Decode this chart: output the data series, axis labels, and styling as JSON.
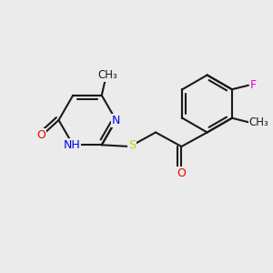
{
  "bg_color": "#ebebeb",
  "bond_color": "#1a1a1a",
  "N_color": "#0000ee",
  "O_color": "#ee0000",
  "S_color": "#cccc00",
  "F_color": "#ee00ee",
  "lw": 1.5,
  "font_size": 9.5,
  "xlim": [
    0,
    10
  ],
  "ylim": [
    0,
    10
  ]
}
